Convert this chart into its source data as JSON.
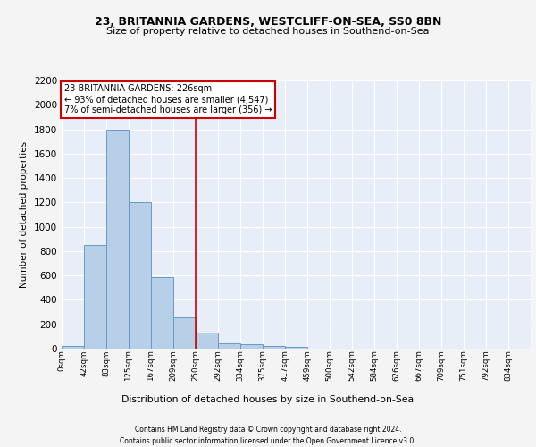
{
  "title1": "23, BRITANNIA GARDENS, WESTCLIFF-ON-SEA, SS0 8BN",
  "title2": "Size of property relative to detached houses in Southend-on-Sea",
  "xlabel": "Distribution of detached houses by size in Southend-on-Sea",
  "ylabel": "Number of detached properties",
  "annotation_line1": "23 BRITANNIA GARDENS: 226sqm",
  "annotation_line2": "← 93% of detached houses are smaller (4,547)",
  "annotation_line3": "7% of semi-detached houses are larger (356) →",
  "bin_labels": [
    "0sqm",
    "42sqm",
    "83sqm",
    "125sqm",
    "167sqm",
    "209sqm",
    "250sqm",
    "292sqm",
    "334sqm",
    "375sqm",
    "417sqm",
    "459sqm",
    "500sqm",
    "542sqm",
    "584sqm",
    "626sqm",
    "667sqm",
    "709sqm",
    "751sqm",
    "792sqm",
    "834sqm"
  ],
  "bar_heights": [
    25,
    850,
    1800,
    1200,
    585,
    255,
    130,
    45,
    40,
    25,
    15,
    0,
    0,
    0,
    0,
    0,
    0,
    0,
    0,
    0,
    0
  ],
  "bar_color": "#b8cfe8",
  "bar_edge_color": "#6699cc",
  "vline_index": 6,
  "ylim": [
    0,
    2200
  ],
  "yticks": [
    0,
    200,
    400,
    600,
    800,
    1000,
    1200,
    1400,
    1600,
    1800,
    2000,
    2200
  ],
  "background_color": "#e8eef8",
  "grid_color": "#ffffff",
  "fig_bg_color": "#f4f4f4",
  "annotation_box_facecolor": "#ffffff",
  "annotation_box_edgecolor": "#cc0000",
  "vline_color": "#cc0000",
  "footer1": "Contains HM Land Registry data © Crown copyright and database right 2024.",
  "footer2": "Contains public sector information licensed under the Open Government Licence v3.0."
}
